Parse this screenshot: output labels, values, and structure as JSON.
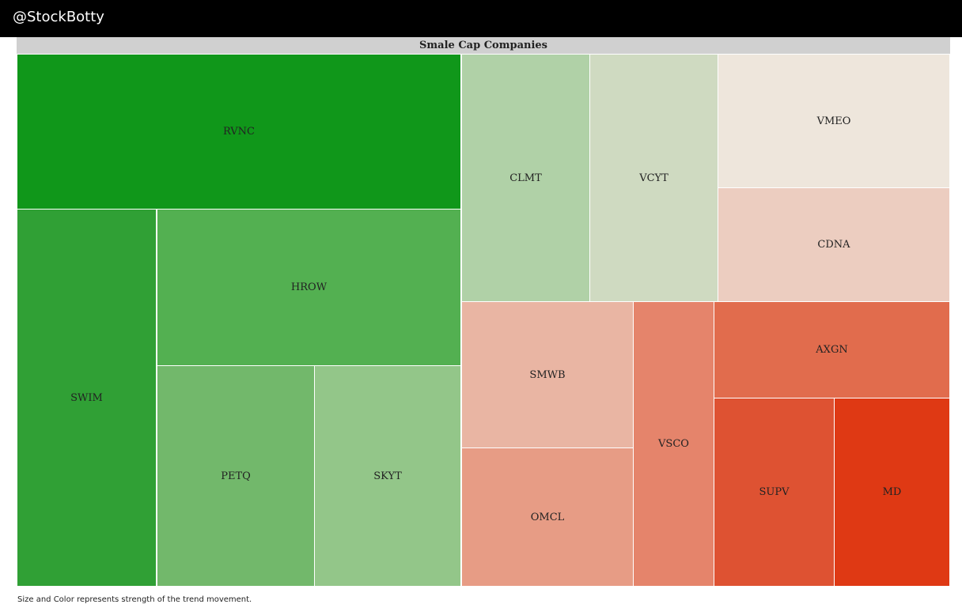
{
  "header": {
    "brand": "@StockBotty"
  },
  "footnote": "Size and Color represents strength of the trend movement.",
  "chart_data": {
    "type": "treemap",
    "title": "Smale Cap Companies",
    "tiles": [
      {
        "label": "RVNC",
        "color": "#10971a"
      },
      {
        "label": "SWIM",
        "color": "#30a035"
      },
      {
        "label": "HROW",
        "color": "#53b051"
      },
      {
        "label": "PETQ",
        "color": "#72b86b"
      },
      {
        "label": "SKYT",
        "color": "#93c689"
      },
      {
        "label": "CLMT",
        "color": "#b0d1a7"
      },
      {
        "label": "VCYT",
        "color": "#cfdac1"
      },
      {
        "label": "VMEO",
        "color": "#eee6dc"
      },
      {
        "label": "CDNA",
        "color": "#eccdc0"
      },
      {
        "label": "SMWB",
        "color": "#e9b5a3"
      },
      {
        "label": "OMCL",
        "color": "#e79c85"
      },
      {
        "label": "VSCO",
        "color": "#e5846b"
      },
      {
        "label": "AXGN",
        "color": "#e16c4d"
      },
      {
        "label": "SUPV",
        "color": "#de5232"
      },
      {
        "label": "MD",
        "color": "#df3914"
      }
    ]
  }
}
